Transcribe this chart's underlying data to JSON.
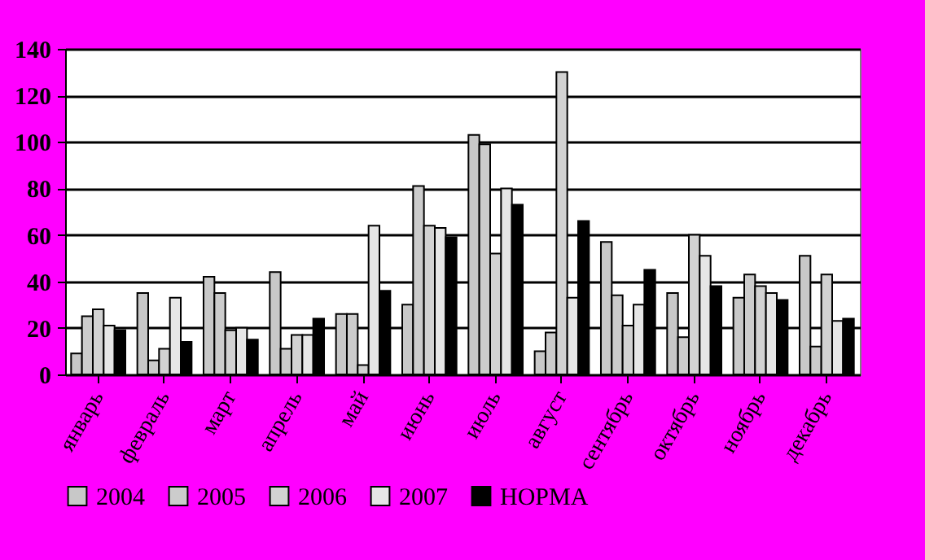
{
  "chart_data": {
    "type": "bar",
    "categories": [
      "январь",
      "февраль",
      "март",
      "апрель",
      "май",
      "июнь",
      "июль",
      "август",
      "сентябрь",
      "октябрь",
      "ноябрь",
      "декабрь"
    ],
    "series": [
      {
        "name": "2004",
        "color": "#c8c8c8",
        "values": [
          9,
          35,
          42,
          44,
          26,
          30,
          103,
          10,
          57,
          35,
          33,
          51
        ]
      },
      {
        "name": "2005",
        "color": "#cccccc",
        "values": [
          25,
          6,
          35,
          11,
          26,
          81,
          99,
          18,
          34,
          16,
          43,
          12
        ]
      },
      {
        "name": "2006",
        "color": "#d2d2d2",
        "values": [
          28,
          11,
          19,
          17,
          4,
          64,
          52,
          130,
          21,
          60,
          38,
          43
        ]
      },
      {
        "name": "2007",
        "color": "#e6e6e6",
        "values": [
          21,
          33,
          20,
          17,
          64,
          63,
          80,
          33,
          30,
          51,
          35,
          23
        ]
      },
      {
        "name": "НОРМА",
        "color": "#000000",
        "values": [
          19,
          14,
          15,
          24,
          36,
          59,
          73,
          66,
          45,
          38,
          32,
          24
        ]
      }
    ],
    "ylim": [
      0,
      140
    ],
    "yticks": [
      0,
      20,
      40,
      60,
      80,
      100,
      120,
      140
    ],
    "grid": "y",
    "legend": "bottom"
  }
}
